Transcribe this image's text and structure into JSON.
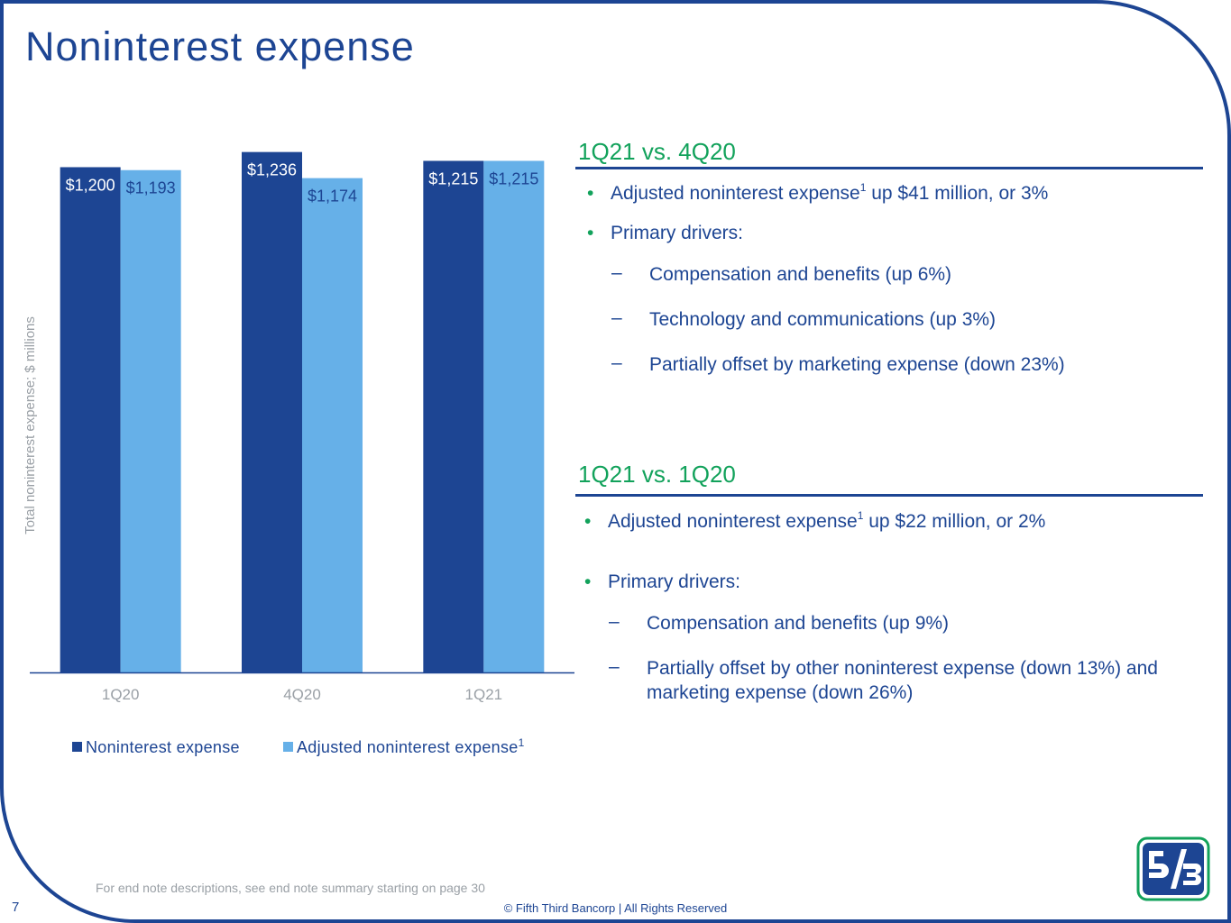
{
  "page": {
    "title": "Noninterest expense",
    "page_number": "7",
    "endnote": "For end note descriptions, see end note summary starting on page 30",
    "copyright": "© Fifth Third Bancorp | All Rights Reserved"
  },
  "colors": {
    "navy": "#1d4593",
    "light_blue": "#66b0e8",
    "green": "#12a25b"
  },
  "chart_data": {
    "type": "bar",
    "categories": [
      "1Q20",
      "4Q20",
      "1Q21"
    ],
    "series": [
      {
        "name": "Noninterest expense",
        "values": [
          1200,
          1236,
          1215
        ],
        "labels": [
          "$1,200",
          "$1,236",
          "$1,215"
        ],
        "color": "#1d4593"
      },
      {
        "name": "Adjusted noninterest expense",
        "values": [
          1193,
          1174,
          1215
        ],
        "labels": [
          "$1,193",
          "$1,174",
          "$1,215"
        ],
        "color": "#66b0e8"
      }
    ],
    "ylabel": "Total noninterest expense; $ millions",
    "ylim": [
      0,
      1300
    ],
    "grid": false,
    "legend_position": "bottom"
  },
  "legend": {
    "item1": "Noninterest expense",
    "item2": "Adjusted noninterest expense",
    "item2_sup": "1"
  },
  "section1": {
    "heading": "1Q21 vs. 4Q20",
    "bullet1_a": "Adjusted noninterest expense",
    "bullet1_sup": "1",
    "bullet1_b": " up $41 million, or 3%",
    "bullet2": "Primary drivers:",
    "subs": [
      "Compensation and benefits (up 6%)",
      "Technology and communications (up 3%)",
      "Partially offset by marketing expense (down 23%)"
    ]
  },
  "section2": {
    "heading": "1Q21 vs. 1Q20",
    "bullet1_a": "Adjusted noninterest expense",
    "bullet1_sup": "1",
    "bullet1_b": " up $22 million, or 2%",
    "bullet2": "Primary drivers:",
    "subs": [
      "Compensation and benefits (up 9%)",
      "Partially offset by other noninterest expense (down 13%) and marketing expense (down 26%)"
    ]
  },
  "bullet_char": "•",
  "dash_char": "–",
  "logo_icon": "fifth-third-logo-icon"
}
